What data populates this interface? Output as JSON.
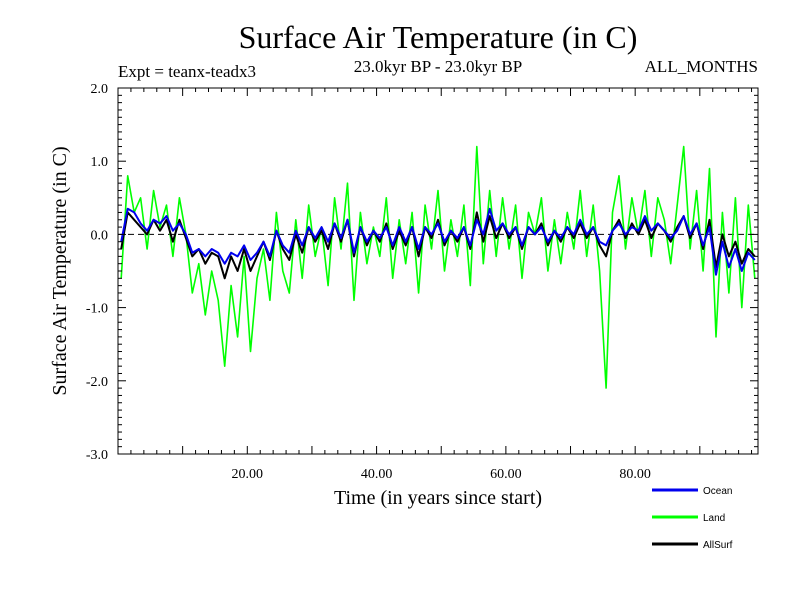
{
  "chart_data": {
    "type": "line",
    "title": "Surface Air Temperature (in C)",
    "subtitle_left": "Expt = teanx-teadx3",
    "subtitle_center": "23.0kyr BP - 23.0kyr BP",
    "subtitle_right": "ALL_MONTHS",
    "xlabel": "Time (in years since start)",
    "ylabel": "Surface Air Temperature (in C)",
    "xlim": [
      0,
      99
    ],
    "ylim": [
      -3.0,
      2.0
    ],
    "x_ticks": [
      20,
      40,
      60,
      80
    ],
    "x_tick_labels": [
      "20.00",
      "40.00",
      "60.00",
      "80.00"
    ],
    "y_ticks": [
      -3.0,
      -2.0,
      -1.0,
      0.0,
      1.0,
      2.0
    ],
    "y_tick_labels": [
      "-3.0",
      "-2.0",
      "-1.0",
      "0.0",
      "1.0",
      "2.0"
    ],
    "reference_line": 0.0,
    "legend_position": "bottom-right",
    "series": [
      {
        "name": "Land",
        "color": "#00ff00",
        "x": [
          0.5,
          1.5,
          2.5,
          3.5,
          4.5,
          5.5,
          6.5,
          7.5,
          8.5,
          9.5,
          10.5,
          11.5,
          12.5,
          13.5,
          14.5,
          15.5,
          16.5,
          17.5,
          18.5,
          19.5,
          20.5,
          21.5,
          22.5,
          23.5,
          24.5,
          25.5,
          26.5,
          27.5,
          28.5,
          29.5,
          30.5,
          31.5,
          32.5,
          33.5,
          34.5,
          35.5,
          36.5,
          37.5,
          38.5,
          39.5,
          40.5,
          41.5,
          42.5,
          43.5,
          44.5,
          45.5,
          46.5,
          47.5,
          48.5,
          49.5,
          50.5,
          51.5,
          52.5,
          53.5,
          54.5,
          55.5,
          56.5,
          57.5,
          58.5,
          59.5,
          60.5,
          61.5,
          62.5,
          63.5,
          64.5,
          65.5,
          66.5,
          67.5,
          68.5,
          69.5,
          70.5,
          71.5,
          72.5,
          73.5,
          74.5,
          75.5,
          76.5,
          77.5,
          78.5,
          79.5,
          80.5,
          81.5,
          82.5,
          83.5,
          84.5,
          85.5,
          86.5,
          87.5,
          88.5,
          89.5,
          90.5,
          91.5,
          92.5,
          93.5,
          94.5,
          95.5,
          96.5,
          97.5,
          98.5
        ],
        "values": [
          -0.6,
          0.8,
          0.3,
          0.5,
          -0.2,
          0.6,
          0.1,
          0.4,
          -0.3,
          0.5,
          0.0,
          -0.8,
          -0.4,
          -1.1,
          -0.5,
          -0.9,
          -1.8,
          -0.7,
          -1.4,
          -0.3,
          -1.6,
          -0.6,
          -0.2,
          -0.9,
          0.3,
          -0.5,
          -0.8,
          0.2,
          -0.6,
          0.4,
          -0.3,
          0.1,
          -0.7,
          0.5,
          -0.2,
          0.7,
          -0.9,
          0.3,
          -0.4,
          0.1,
          -0.3,
          0.5,
          -0.6,
          0.2,
          -0.4,
          0.3,
          -0.8,
          0.4,
          -0.2,
          0.6,
          -0.5,
          0.2,
          -0.3,
          0.4,
          -0.7,
          1.2,
          -0.4,
          0.6,
          -0.3,
          0.5,
          -0.2,
          0.4,
          -0.6,
          0.3,
          0.0,
          0.5,
          -0.5,
          0.2,
          -0.4,
          0.3,
          -0.2,
          0.6,
          -0.3,
          0.4,
          -0.5,
          -2.1,
          0.3,
          0.8,
          -0.2,
          0.5,
          0.0,
          0.6,
          -0.3,
          0.5,
          0.2,
          -0.4,
          0.4,
          1.2,
          -0.2,
          0.6,
          -0.5,
          0.9,
          -1.4,
          0.3,
          -0.8,
          0.5,
          -1.0,
          0.4,
          -0.6
        ]
      },
      {
        "name": "AllSurf",
        "color": "#000000",
        "x": [
          0.5,
          1.5,
          2.5,
          3.5,
          4.5,
          5.5,
          6.5,
          7.5,
          8.5,
          9.5,
          10.5,
          11.5,
          12.5,
          13.5,
          14.5,
          15.5,
          16.5,
          17.5,
          18.5,
          19.5,
          20.5,
          21.5,
          22.5,
          23.5,
          24.5,
          25.5,
          26.5,
          27.5,
          28.5,
          29.5,
          30.5,
          31.5,
          32.5,
          33.5,
          34.5,
          35.5,
          36.5,
          37.5,
          38.5,
          39.5,
          40.5,
          41.5,
          42.5,
          43.5,
          44.5,
          45.5,
          46.5,
          47.5,
          48.5,
          49.5,
          50.5,
          51.5,
          52.5,
          53.5,
          54.5,
          55.5,
          56.5,
          57.5,
          58.5,
          59.5,
          60.5,
          61.5,
          62.5,
          63.5,
          64.5,
          65.5,
          66.5,
          67.5,
          68.5,
          69.5,
          70.5,
          71.5,
          72.5,
          73.5,
          74.5,
          75.5,
          76.5,
          77.5,
          78.5,
          79.5,
          80.5,
          81.5,
          82.5,
          83.5,
          84.5,
          85.5,
          86.5,
          87.5,
          88.5,
          89.5,
          90.5,
          91.5,
          92.5,
          93.5,
          94.5,
          95.5,
          96.5,
          97.5,
          98.5
        ],
        "values": [
          -0.2,
          0.3,
          0.2,
          0.1,
          0.0,
          0.2,
          0.05,
          0.2,
          -0.1,
          0.2,
          -0.05,
          -0.3,
          -0.2,
          -0.4,
          -0.25,
          -0.3,
          -0.6,
          -0.3,
          -0.5,
          -0.2,
          -0.5,
          -0.3,
          -0.1,
          -0.35,
          0.05,
          -0.2,
          -0.35,
          0.0,
          -0.25,
          0.1,
          -0.1,
          0.05,
          -0.2,
          0.15,
          -0.1,
          0.2,
          -0.3,
          0.1,
          -0.15,
          0.05,
          -0.1,
          0.15,
          -0.2,
          0.05,
          -0.15,
          0.1,
          -0.3,
          0.1,
          -0.05,
          0.2,
          -0.15,
          0.05,
          -0.1,
          0.1,
          -0.2,
          0.3,
          -0.1,
          0.25,
          -0.05,
          0.15,
          -0.05,
          0.1,
          -0.2,
          0.1,
          0.0,
          0.15,
          -0.15,
          0.05,
          -0.1,
          0.1,
          -0.05,
          0.15,
          -0.05,
          0.1,
          -0.15,
          -0.3,
          0.05,
          0.2,
          -0.05,
          0.15,
          0.0,
          0.2,
          -0.05,
          0.15,
          0.05,
          -0.1,
          0.1,
          0.25,
          -0.05,
          0.15,
          -0.2,
          0.2,
          -0.45,
          0.0,
          -0.3,
          -0.1,
          -0.4,
          -0.2,
          -0.3
        ]
      },
      {
        "name": "Ocean",
        "color": "#0000ee",
        "x": [
          0.5,
          1.5,
          2.5,
          3.5,
          4.5,
          5.5,
          6.5,
          7.5,
          8.5,
          9.5,
          10.5,
          11.5,
          12.5,
          13.5,
          14.5,
          15.5,
          16.5,
          17.5,
          18.5,
          19.5,
          20.5,
          21.5,
          22.5,
          23.5,
          24.5,
          25.5,
          26.5,
          27.5,
          28.5,
          29.5,
          30.5,
          31.5,
          32.5,
          33.5,
          34.5,
          35.5,
          36.5,
          37.5,
          38.5,
          39.5,
          40.5,
          41.5,
          42.5,
          43.5,
          44.5,
          45.5,
          46.5,
          47.5,
          48.5,
          49.5,
          50.5,
          51.5,
          52.5,
          53.5,
          54.5,
          55.5,
          56.5,
          57.5,
          58.5,
          59.5,
          60.5,
          61.5,
          62.5,
          63.5,
          64.5,
          65.5,
          66.5,
          67.5,
          68.5,
          69.5,
          70.5,
          71.5,
          72.5,
          73.5,
          74.5,
          75.5,
          76.5,
          77.5,
          78.5,
          79.5,
          80.5,
          81.5,
          82.5,
          83.5,
          84.5,
          85.5,
          86.5,
          87.5,
          88.5,
          89.5,
          90.5,
          91.5,
          92.5,
          93.5,
          94.5,
          95.5,
          96.5,
          97.5,
          98.5
        ],
        "values": [
          -0.1,
          0.35,
          0.3,
          0.15,
          0.05,
          0.2,
          0.15,
          0.25,
          0.05,
          0.15,
          0.0,
          -0.25,
          -0.2,
          -0.3,
          -0.2,
          -0.25,
          -0.4,
          -0.25,
          -0.3,
          -0.15,
          -0.35,
          -0.25,
          -0.1,
          -0.3,
          0.05,
          -0.15,
          -0.25,
          0.05,
          -0.15,
          0.1,
          -0.05,
          0.1,
          -0.1,
          0.15,
          -0.05,
          0.2,
          -0.25,
          0.1,
          -0.1,
          0.05,
          -0.05,
          0.1,
          -0.15,
          0.1,
          -0.1,
          0.1,
          -0.2,
          0.1,
          0.0,
          0.15,
          -0.1,
          0.05,
          -0.05,
          0.1,
          -0.15,
          0.2,
          0.0,
          0.35,
          0.05,
          0.15,
          0.0,
          0.1,
          -0.15,
          0.1,
          0.0,
          0.1,
          -0.1,
          0.05,
          -0.05,
          0.1,
          0.0,
          0.2,
          0.0,
          0.1,
          -0.1,
          -0.15,
          0.05,
          0.15,
          0.0,
          0.1,
          0.05,
          0.25,
          0.05,
          0.15,
          0.05,
          -0.05,
          0.05,
          0.25,
          0.0,
          0.15,
          -0.15,
          0.1,
          -0.55,
          -0.1,
          -0.45,
          -0.2,
          -0.5,
          -0.25,
          -0.35
        ]
      }
    ]
  }
}
